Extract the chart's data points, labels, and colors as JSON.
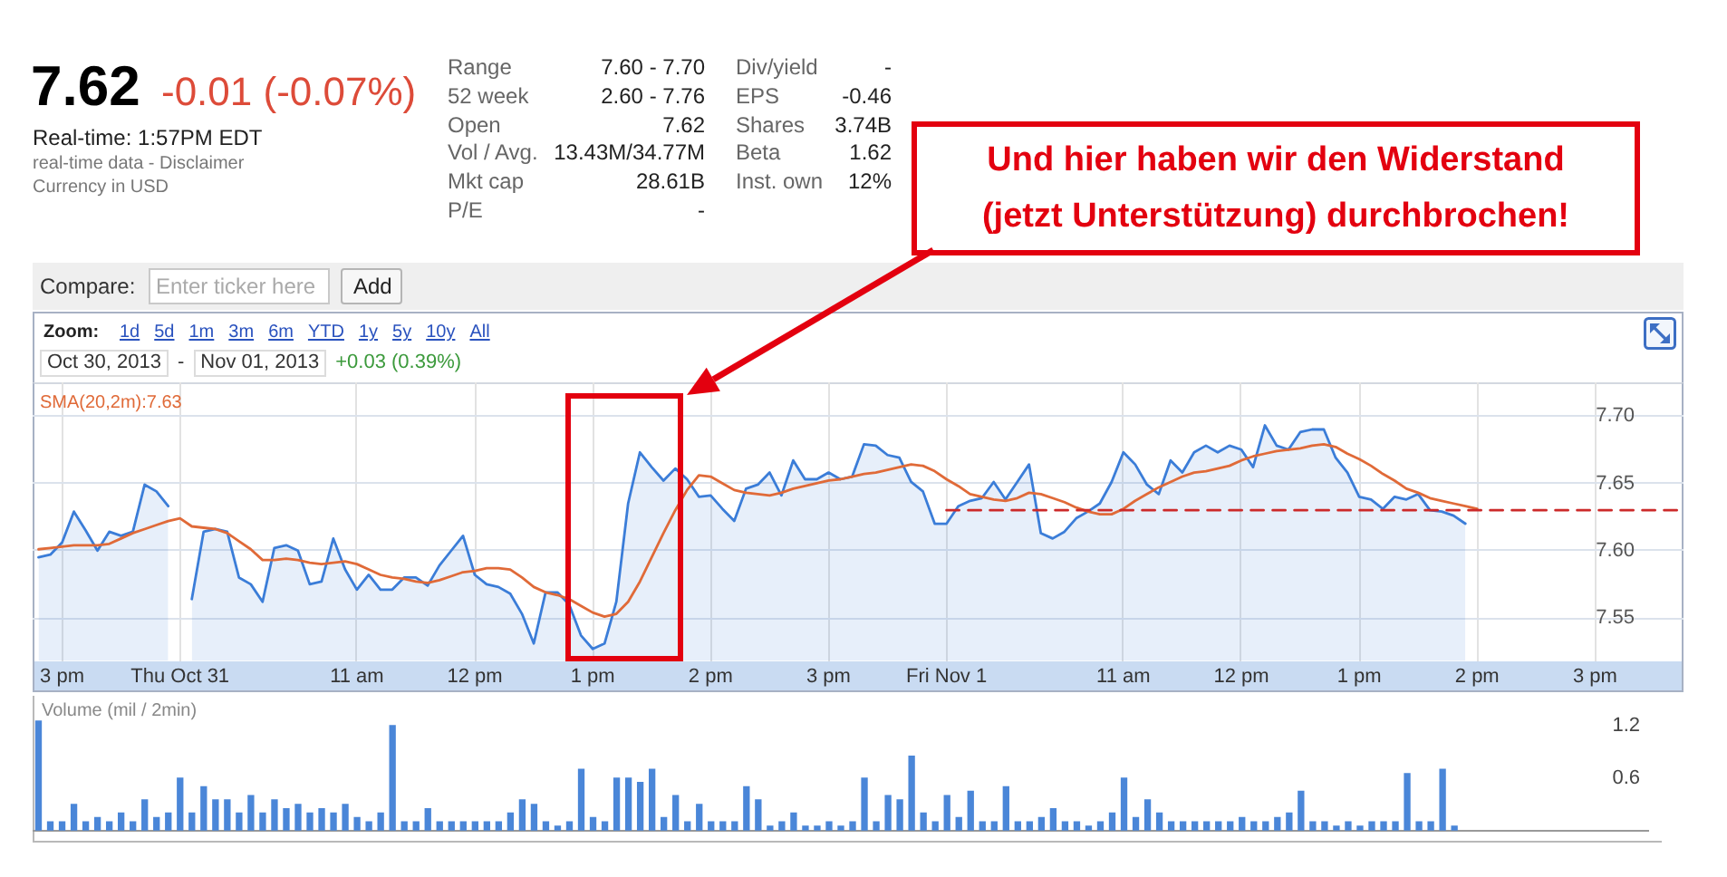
{
  "chart_data": [
    {
      "type": "other",
      "title": "7.62",
      "subtitle": "-0.01 (-0.07%)",
      "annotations": [
        "Real-time: 1:57PM EDT",
        "real-time data - Disclaimer",
        "Currency in USD",
        "Range",
        "7.60 - 7.70",
        "52 week",
        "2.60 - 7.76",
        "Open",
        "7.62",
        "Vol / Avg.",
        "13.43M/34.77M",
        "Mkt cap",
        "28.61B",
        "P/E",
        "-",
        "Div/yield",
        "-",
        "EPS",
        "-0.46",
        "Shares",
        "3.74B",
        "Beta",
        "1.62",
        "Inst. own",
        "12%",
        "Compare:",
        "Enter ticker here",
        "Add"
      ]
    },
    {
      "type": "line",
      "categories": [
        null,
        null,
        "3 pm",
        null,
        null,
        null,
        null,
        null,
        null,
        null,
        null,
        null,
        "Thu Oct 31",
        null,
        null,
        null,
        null,
        null,
        null,
        null,
        null,
        null,
        null,
        null,
        null,
        null,
        null,
        "11 am",
        null,
        null,
        null,
        null,
        null,
        null,
        null,
        null,
        null,
        "12 pm",
        null,
        null,
        null,
        null,
        null,
        null,
        null,
        null,
        null,
        "1 pm",
        null,
        null,
        null,
        null,
        null,
        null,
        null,
        null,
        null,
        "2 pm",
        null,
        null,
        null,
        null,
        null,
        null,
        null,
        null,
        null,
        "3 pm",
        null,
        null,
        null,
        null,
        null,
        null,
        null,
        null,
        null,
        "Fri Nov 1",
        null,
        null,
        null,
        null,
        null,
        null,
        null,
        null,
        null,
        null,
        null,
        null,
        null,
        null,
        "11 am",
        null,
        null,
        null,
        null,
        null,
        null,
        null,
        null,
        null,
        "12 pm",
        null,
        null,
        null,
        null,
        null,
        null,
        null,
        null,
        null,
        "1 pm",
        null,
        null,
        null,
        null,
        null,
        null,
        null,
        null,
        null,
        "2 pm",
        null,
        null,
        null,
        null,
        null,
        null,
        null,
        null,
        null,
        "3 pm",
        null,
        null,
        null,
        null,
        null,
        null,
        null
      ],
      "series": [
        {
          "type": "area",
          "color": "#3b7dd8",
          "values": [
            7.595,
            7.597,
            7.606,
            7.629,
            7.615,
            7.6,
            7.614,
            7.611,
            7.614,
            7.649,
            7.644,
            7.633,
            null,
            7.564,
            7.614,
            7.616,
            7.614,
            7.58,
            7.575,
            7.562,
            7.602,
            7.604,
            7.6,
            7.575,
            7.577,
            7.609,
            7.586,
            7.571,
            7.582,
            7.571,
            7.571,
            7.58,
            7.58,
            7.574,
            7.589,
            7.6,
            7.611,
            7.582,
            7.575,
            7.573,
            7.568,
            7.553,
            7.531,
            7.569,
            7.569,
            7.56,
            7.537,
            7.527,
            7.531,
            7.562,
            7.635,
            7.673,
            7.662,
            7.652,
            7.661,
            7.653,
            7.64,
            7.641,
            7.631,
            7.622,
            7.646,
            7.649,
            7.658,
            7.641,
            7.667,
            7.653,
            7.653,
            7.658,
            7.653,
            7.655,
            7.679,
            7.678,
            7.671,
            7.669,
            7.651,
            7.644,
            7.62,
            7.62,
            7.633,
            7.637,
            7.639,
            7.651,
            7.638,
            7.651,
            7.664,
            7.613,
            7.609,
            7.614,
            7.624,
            7.629,
            7.635,
            7.651,
            7.673,
            7.664,
            7.649,
            7.642,
            7.667,
            7.658,
            7.673,
            7.678,
            7.673,
            7.678,
            7.675,
            7.662,
            7.693,
            7.678,
            7.675,
            7.688,
            7.69,
            7.69,
            7.669,
            7.658,
            7.64,
            7.638,
            7.631,
            7.64,
            7.638,
            7.642,
            7.63,
            7.629,
            7.626,
            7.62,
            null,
            null,
            null,
            null,
            null,
            null,
            null,
            null,
            null,
            null,
            null,
            null,
            null,
            null,
            null,
            null,
            null,
            null
          ]
        },
        {
          "name": "SMA(20,2m):7.63",
          "color": "#e06a38",
          "values": [
            7.601,
            7.602,
            7.603,
            7.604,
            7.604,
            7.604,
            7.605,
            7.609,
            7.613,
            7.616,
            7.619,
            7.622,
            7.624,
            7.618,
            7.617,
            7.616,
            7.613,
            7.607,
            7.601,
            7.593,
            7.593,
            7.594,
            7.593,
            7.591,
            7.59,
            7.591,
            7.592,
            7.59,
            7.586,
            7.582,
            7.58,
            7.579,
            7.577,
            7.576,
            7.578,
            7.581,
            7.584,
            7.585,
            7.587,
            7.587,
            7.586,
            7.58,
            7.573,
            7.569,
            7.567,
            7.564,
            7.559,
            7.554,
            7.551,
            7.553,
            7.562,
            7.577,
            7.595,
            7.613,
            7.63,
            7.645,
            7.656,
            7.655,
            7.65,
            7.645,
            7.643,
            7.642,
            7.641,
            7.643,
            7.646,
            7.648,
            7.65,
            7.652,
            7.653,
            7.655,
            7.657,
            7.658,
            7.66,
            7.662,
            7.664,
            7.663,
            7.659,
            7.653,
            7.648,
            7.642,
            7.64,
            7.638,
            7.637,
            7.639,
            7.643,
            7.642,
            7.639,
            7.636,
            7.632,
            7.629,
            7.627,
            7.627,
            7.631,
            7.637,
            7.642,
            7.647,
            7.651,
            7.655,
            7.658,
            7.659,
            7.661,
            7.663,
            7.667,
            7.67,
            7.672,
            7.674,
            7.675,
            7.676,
            7.678,
            7.679,
            7.677,
            7.672,
            7.668,
            7.663,
            7.657,
            7.652,
            7.646,
            7.643,
            7.639,
            7.637,
            7.635,
            7.633,
            7.631,
            null,
            null,
            null,
            null,
            null,
            null,
            null,
            null,
            null,
            null,
            null,
            null,
            null,
            null,
            null,
            null,
            null
          ]
        },
        {
          "type": "line",
          "color": "#cc2a2a",
          "line_style": "dashed",
          "values": [
            null,
            null,
            null,
            null,
            null,
            null,
            null,
            null,
            null,
            null,
            null,
            null,
            null,
            null,
            null,
            null,
            null,
            null,
            null,
            null,
            null,
            null,
            null,
            null,
            null,
            null,
            null,
            null,
            null,
            null,
            null,
            null,
            null,
            null,
            null,
            null,
            null,
            null,
            null,
            null,
            null,
            null,
            null,
            null,
            null,
            null,
            null,
            null,
            null,
            null,
            null,
            null,
            null,
            null,
            null,
            null,
            null,
            null,
            null,
            null,
            null,
            null,
            null,
            null,
            null,
            null,
            null,
            null,
            null,
            null,
            null,
            null,
            null,
            null,
            null,
            null,
            null,
            7.63,
            7.63,
            7.63,
            7.63,
            7.63,
            7.63,
            7.63,
            7.63,
            7.63,
            7.63,
            7.63,
            7.63,
            7.63,
            7.63,
            7.63,
            7.63,
            7.63,
            7.63,
            7.63,
            7.63,
            7.63,
            7.63,
            7.63,
            7.63,
            7.63,
            7.63,
            7.63,
            7.63,
            7.63,
            7.63,
            7.63,
            7.63,
            7.63,
            7.63,
            7.63,
            7.63,
            7.63,
            7.63,
            7.63,
            7.63,
            7.63,
            7.63,
            7.63,
            7.63,
            7.63,
            7.63,
            7.63,
            7.63,
            7.63,
            7.63,
            7.63,
            7.63,
            7.63,
            7.63,
            7.63,
            7.63,
            7.63,
            7.63,
            7.63,
            7.63,
            7.63,
            7.63,
            7.63
          ]
        }
      ],
      "ylim": [
        7.518,
        7.725
      ],
      "yticks": [
        {
          "value": 7.55,
          "label": "7.55"
        },
        {
          "value": 7.6,
          "label": "7.60"
        },
        {
          "value": 7.65,
          "label": "7.65"
        },
        {
          "value": 7.7,
          "label": "7.70"
        }
      ],
      "grid": true,
      "legend": "top left",
      "annotations": [
        "Zoom:",
        "1d",
        "5d",
        "1m",
        "3m",
        "6m",
        "YTD",
        "1y",
        "5y",
        "10y",
        "All",
        "Oct 30, 2013",
        "-",
        "Nov 01, 2013",
        "+0.03 (0.39%)",
        "Und hier haben wir den Widerstand",
        "(jetzt Unterstützung) durchbrochen!"
      ]
    },
    {
      "type": "bar",
      "title": "Volume (mil / 2min)",
      "categories": [
        null,
        null,
        null,
        null,
        null,
        null,
        null,
        null,
        null,
        null,
        null,
        null,
        null,
        null,
        null,
        null,
        null,
        null,
        null,
        null,
        null,
        null,
        null,
        null,
        null,
        null,
        null,
        null,
        null,
        null,
        null,
        null,
        null,
        null,
        null,
        null,
        null,
        null,
        null,
        null,
        null,
        null,
        null,
        null,
        null,
        null,
        null,
        null,
        null,
        null,
        null,
        null,
        null,
        null,
        null,
        null,
        null,
        null,
        null,
        null,
        null,
        null,
        null,
        null,
        null,
        null,
        null,
        null,
        null,
        null,
        null,
        null,
        null,
        null,
        null,
        null,
        null,
        null,
        null,
        null,
        null,
        null,
        null,
        null,
        null,
        null,
        null,
        null,
        null,
        null,
        null,
        null,
        null,
        null,
        null,
        null,
        null,
        null,
        null,
        null,
        null,
        null,
        null,
        null,
        null,
        null,
        null,
        null,
        null,
        null,
        null,
        null,
        null,
        null,
        null,
        null,
        null,
        null,
        null,
        null,
        null,
        null,
        null,
        null,
        null,
        null,
        null,
        null,
        null,
        null,
        null,
        null,
        null,
        null,
        null,
        null,
        null
      ],
      "values": [
        1.25,
        0.1,
        0.1,
        0.3,
        0.1,
        0.15,
        0.1,
        0.2,
        0.1,
        0.35,
        0.15,
        0.2,
        0.6,
        0.2,
        0.5,
        0.35,
        0.35,
        0.2,
        0.4,
        0.2,
        0.35,
        0.25,
        0.3,
        0.2,
        0.25,
        0.2,
        0.3,
        0.15,
        0.1,
        0.2,
        1.2,
        0.1,
        0.1,
        0.25,
        0.1,
        0.1,
        0.1,
        0.1,
        0.1,
        0.1,
        0.2,
        0.35,
        0.3,
        0.1,
        0.05,
        0.1,
        0.7,
        0.15,
        0.1,
        0.6,
        0.6,
        0.55,
        0.7,
        0.15,
        0.4,
        0.1,
        0.3,
        0.1,
        0.1,
        0.1,
        0.5,
        0.35,
        0.05,
        0.1,
        0.2,
        0.05,
        0.05,
        0.1,
        0.05,
        0.1,
        0.6,
        0.1,
        0.4,
        0.35,
        0.85,
        0.2,
        0.1,
        0.4,
        0.15,
        0.45,
        0.1,
        0.1,
        0.5,
        0.1,
        0.1,
        0.15,
        0.25,
        0.1,
        0.1,
        0.05,
        0.1,
        0.2,
        0.6,
        0.15,
        0.35,
        0.2,
        0.1,
        0.1,
        0.1,
        0.1,
        0.1,
        0.1,
        0.15,
        0.1,
        0.1,
        0.15,
        0.2,
        0.45,
        0.1,
        0.1,
        0.05,
        0.1,
        0.05,
        0.1,
        0.1,
        0.1,
        0.65,
        0.1,
        0.1,
        0.7,
        0.05,
        null,
        null,
        null,
        null,
        null,
        null,
        null,
        null,
        null,
        null,
        null,
        null,
        null,
        null,
        null,
        null
      ],
      "color": "#4a86d8",
      "ylim": [
        0,
        1.3
      ],
      "yticks": [
        0.6,
        1.2
      ]
    }
  ]
}
